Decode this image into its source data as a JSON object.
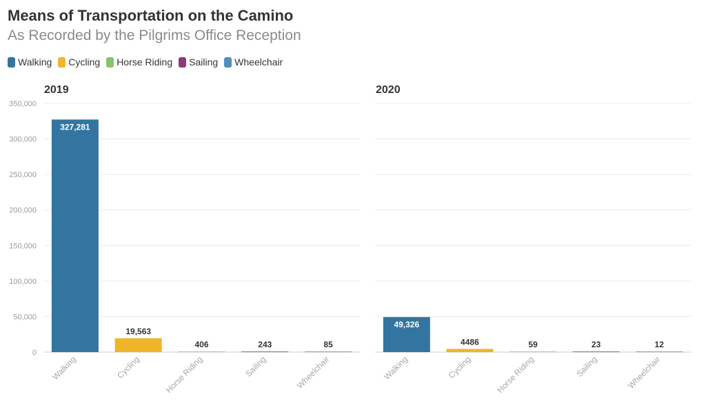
{
  "header": {
    "title": "Means of Transportation on the Camino",
    "subtitle": "As Recorded by the Pilgrims Office Reception"
  },
  "legend": {
    "items": [
      {
        "label": "Walking",
        "color": "#3375a0"
      },
      {
        "label": "Cycling",
        "color": "#f0b528"
      },
      {
        "label": "Horse Riding",
        "color": "#8cc269"
      },
      {
        "label": "Sailing",
        "color": "#8e3a79"
      },
      {
        "label": "Wheelchair",
        "color": "#4f8fb8"
      }
    ]
  },
  "chart_data": [
    {
      "type": "bar",
      "title": "2019",
      "categories": [
        "Walking",
        "Cycling",
        "Horse Riding",
        "Sailing",
        "Wheelchair"
      ],
      "values": [
        327281,
        19563,
        406,
        243,
        85
      ],
      "value_labels": [
        "327,281",
        "19,563",
        "406",
        "243",
        "85"
      ],
      "ylim": [
        0,
        350000
      ],
      "yticks": [
        "0",
        "50,000",
        "100,000",
        "150,000",
        "200,000",
        "250,000",
        "300,000",
        "350,000"
      ],
      "grid": true
    },
    {
      "type": "bar",
      "title": "2020",
      "categories": [
        "Walking",
        "Cycling",
        "Horse Riding",
        "Sailing",
        "Wheelchair"
      ],
      "values": [
        49326,
        4486,
        59,
        23,
        12
      ],
      "value_labels": [
        "49,326",
        "4486",
        "59",
        "23",
        "12"
      ],
      "ylim": [
        0,
        350000
      ],
      "grid": true
    }
  ]
}
